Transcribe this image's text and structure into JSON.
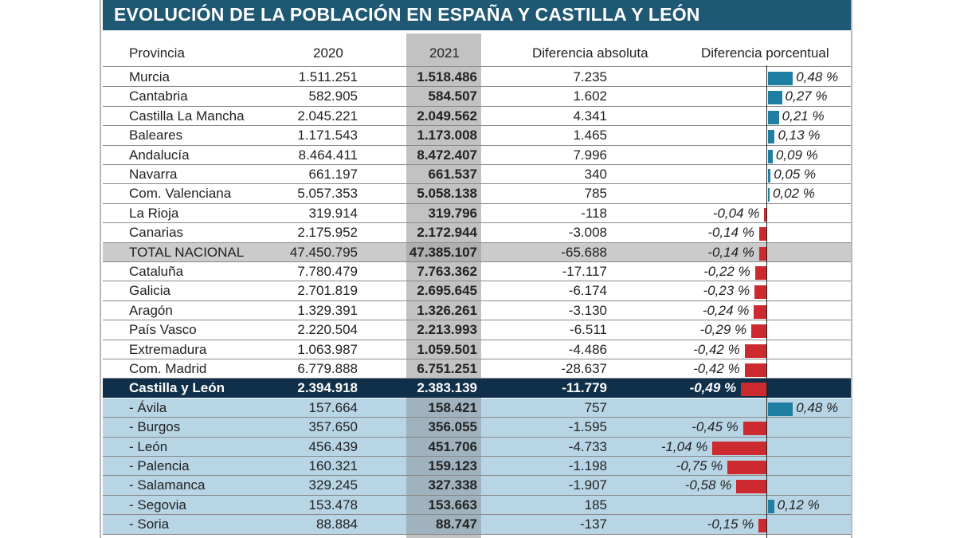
{
  "title": "EVOLUCIÓN DE LA POBLACIÓN EN ESPAÑA Y CASTILLA Y LEÓN",
  "headers": {
    "provincia": "Provincia",
    "y2020": "2020",
    "y2021": "2021",
    "abs": "Diferencia absoluta",
    "pct": "Diferencia porcentual"
  },
  "colors": {
    "title_bg": "#1f5873",
    "positive": "#1f7fa3",
    "negative": "#cd2a30",
    "cyl_bg": "#0f2f4a",
    "sub_bg": "#b8d5e6",
    "col2021_bg": "#c2c2c2"
  },
  "chart_data": {
    "type": "table",
    "columns": [
      "Provincia",
      "2020",
      "2021",
      "Diferencia absoluta",
      "Diferencia porcentual"
    ],
    "rows": [
      {
        "name": "Murcia",
        "y2020": "1.511.251",
        "y2021": "1.518.486",
        "abs": "7.235",
        "pct_label": "0,48 %",
        "pct": 0.48,
        "kind": "normal"
      },
      {
        "name": "Cantabria",
        "y2020": "582.905",
        "y2021": "584.507",
        "abs": "1.602",
        "pct_label": "0,27 %",
        "pct": 0.27,
        "kind": "normal"
      },
      {
        "name": "Castilla La Mancha",
        "y2020": "2.045.221",
        "y2021": "2.049.562",
        "abs": "4.341",
        "pct_label": "0,21 %",
        "pct": 0.21,
        "kind": "normal"
      },
      {
        "name": "Baleares",
        "y2020": "1.171.543",
        "y2021": "1.173.008",
        "abs": "1.465",
        "pct_label": "0,13 %",
        "pct": 0.13,
        "kind": "normal"
      },
      {
        "name": "Andalucía",
        "y2020": "8.464.411",
        "y2021": "8.472.407",
        "abs": "7.996",
        "pct_label": "0,09 %",
        "pct": 0.09,
        "kind": "normal"
      },
      {
        "name": "Navarra",
        "y2020": "661.197",
        "y2021": "661.537",
        "abs": "340",
        "pct_label": "0,05 %",
        "pct": 0.05,
        "kind": "normal"
      },
      {
        "name": "Com. Valenciana",
        "y2020": "5.057.353",
        "y2021": "5.058.138",
        "abs": "785",
        "pct_label": "0,02 %",
        "pct": 0.02,
        "kind": "normal"
      },
      {
        "name": "La Rioja",
        "y2020": "319.914",
        "y2021": "319.796",
        "abs": "-118",
        "pct_label": "-0,04 %",
        "pct": -0.04,
        "kind": "normal"
      },
      {
        "name": "Canarias",
        "y2020": "2.175.952",
        "y2021": "2.172.944",
        "abs": "-3.008",
        "pct_label": "-0,14 %",
        "pct": -0.14,
        "kind": "normal"
      },
      {
        "name": "TOTAL NACIONAL",
        "y2020": "47.450.795",
        "y2021": "47.385.107",
        "abs": "-65.688",
        "pct_label": "-0,14 %",
        "pct": -0.14,
        "kind": "total"
      },
      {
        "name": "Cataluña",
        "y2020": "7.780.479",
        "y2021": "7.763.362",
        "abs": "-17.117",
        "pct_label": "-0,22 %",
        "pct": -0.22,
        "kind": "normal"
      },
      {
        "name": "Galicia",
        "y2020": "2.701.819",
        "y2021": "2.695.645",
        "abs": "-6.174",
        "pct_label": "-0,23 %",
        "pct": -0.23,
        "kind": "normal"
      },
      {
        "name": "Aragón",
        "y2020": "1.329.391",
        "y2021": "1.326.261",
        "abs": "-3.130",
        "pct_label": "-0,24 %",
        "pct": -0.24,
        "kind": "normal"
      },
      {
        "name": "País Vasco",
        "y2020": "2.220.504",
        "y2021": "2.213.993",
        "abs": "-6.511",
        "pct_label": "-0,29 %",
        "pct": -0.29,
        "kind": "normal"
      },
      {
        "name": "Extremadura",
        "y2020": "1.063.987",
        "y2021": "1.059.501",
        "abs": "-4.486",
        "pct_label": "-0,42 %",
        "pct": -0.42,
        "kind": "normal"
      },
      {
        "name": "Com. Madrid",
        "y2020": "6.779.888",
        "y2021": "6.751.251",
        "abs": "-28.637",
        "pct_label": "-0,42 %",
        "pct": -0.42,
        "kind": "normal"
      },
      {
        "name": "Castilla y León",
        "y2020": "2.394.918",
        "y2021": "2.383.139",
        "abs": "-11.779",
        "pct_label": "-0,49 %",
        "pct": -0.49,
        "kind": "cyl"
      },
      {
        "name": "- Ávila",
        "y2020": "157.664",
        "y2021": "158.421",
        "abs": "757",
        "pct_label": "0,48 %",
        "pct": 0.48,
        "kind": "sub"
      },
      {
        "name": "- Burgos",
        "y2020": "357.650",
        "y2021": "356.055",
        "abs": "-1.595",
        "pct_label": "-0,45 %",
        "pct": -0.45,
        "kind": "sub"
      },
      {
        "name": "- León",
        "y2020": "456.439",
        "y2021": "451.706",
        "abs": "-4.733",
        "pct_label": "-1,04 %",
        "pct": -1.04,
        "kind": "sub"
      },
      {
        "name": "- Palencia",
        "y2020": "160.321",
        "y2021": "159.123",
        "abs": "-1.198",
        "pct_label": "-0,75 %",
        "pct": -0.75,
        "kind": "sub"
      },
      {
        "name": "- Salamanca",
        "y2020": "329.245",
        "y2021": "327.338",
        "abs": "-1.907",
        "pct_label": "-0,58 %",
        "pct": -0.58,
        "kind": "sub"
      },
      {
        "name": "- Segovia",
        "y2020": "153.478",
        "y2021": "153.663",
        "abs": "185",
        "pct_label": "0,12 %",
        "pct": 0.12,
        "kind": "sub"
      },
      {
        "name": "- Soria",
        "y2020": "88.884",
        "y2021": "88.747",
        "abs": "-137",
        "pct_label": "-0,15 %",
        "pct": -0.15,
        "kind": "sub"
      }
    ]
  }
}
